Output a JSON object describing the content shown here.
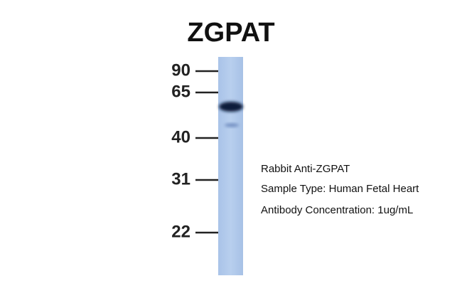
{
  "title": "ZGPAT",
  "markers": [
    "90",
    "65",
    "40",
    "31",
    "22"
  ],
  "annotations": [
    "Rabbit Anti-ZGPAT",
    "Sample Type: Human Fetal Heart",
    "Antibody Concentration: 1ug/mL"
  ]
}
